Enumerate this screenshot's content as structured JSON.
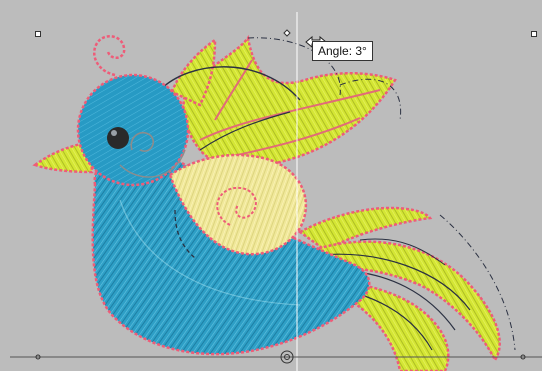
{
  "tooltip": {
    "text": "Angle: 3°"
  },
  "colors": {
    "background": "#bcbcbc",
    "blue": "#2e9fc6",
    "blue_dark": "#1d7fa4",
    "yellow": "#d4e634",
    "cream": "#f0e89a",
    "stitch_pink": "#ee5c78",
    "guide": "#ffffff"
  },
  "icons": {
    "rotate_cursor": "rotate-cursor-icon",
    "pivot_handle": "pivot-handle-icon"
  }
}
